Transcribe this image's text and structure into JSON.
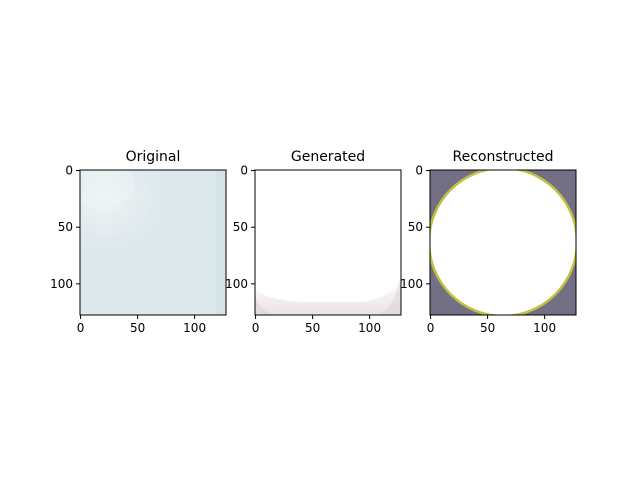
{
  "chart_data": [
    {
      "type": "image",
      "title": "Original",
      "xlim": [
        0,
        128
      ],
      "ylim": [
        128,
        0
      ],
      "xticks": [
        "0",
        "50",
        "100"
      ],
      "yticks": [
        "0",
        "50",
        "100"
      ],
      "colors": {
        "base": "#dde8ec",
        "cloud": "#eef3f5",
        "edge": "#ccdde3"
      }
    },
    {
      "type": "image",
      "title": "Generated",
      "xlim": [
        0,
        128
      ],
      "ylim": [
        128,
        0
      ],
      "xticks": [
        "0",
        "50",
        "100"
      ],
      "yticks": [
        "0",
        "50",
        "100"
      ],
      "colors": {
        "base": "#ffffff",
        "bottom_band": "#efe6e6",
        "corner": "#dcd6da"
      }
    },
    {
      "type": "image",
      "title": "Reconstructed",
      "xlim": [
        0,
        128
      ],
      "ylim": [
        128,
        0
      ],
      "xticks": [
        "0",
        "50",
        "100"
      ],
      "yticks": [
        "0",
        "50",
        "100"
      ],
      "colors": {
        "base": "#ffffff",
        "corner_dark": "#5b5670",
        "corner_rim": "#c9c93a"
      }
    }
  ]
}
